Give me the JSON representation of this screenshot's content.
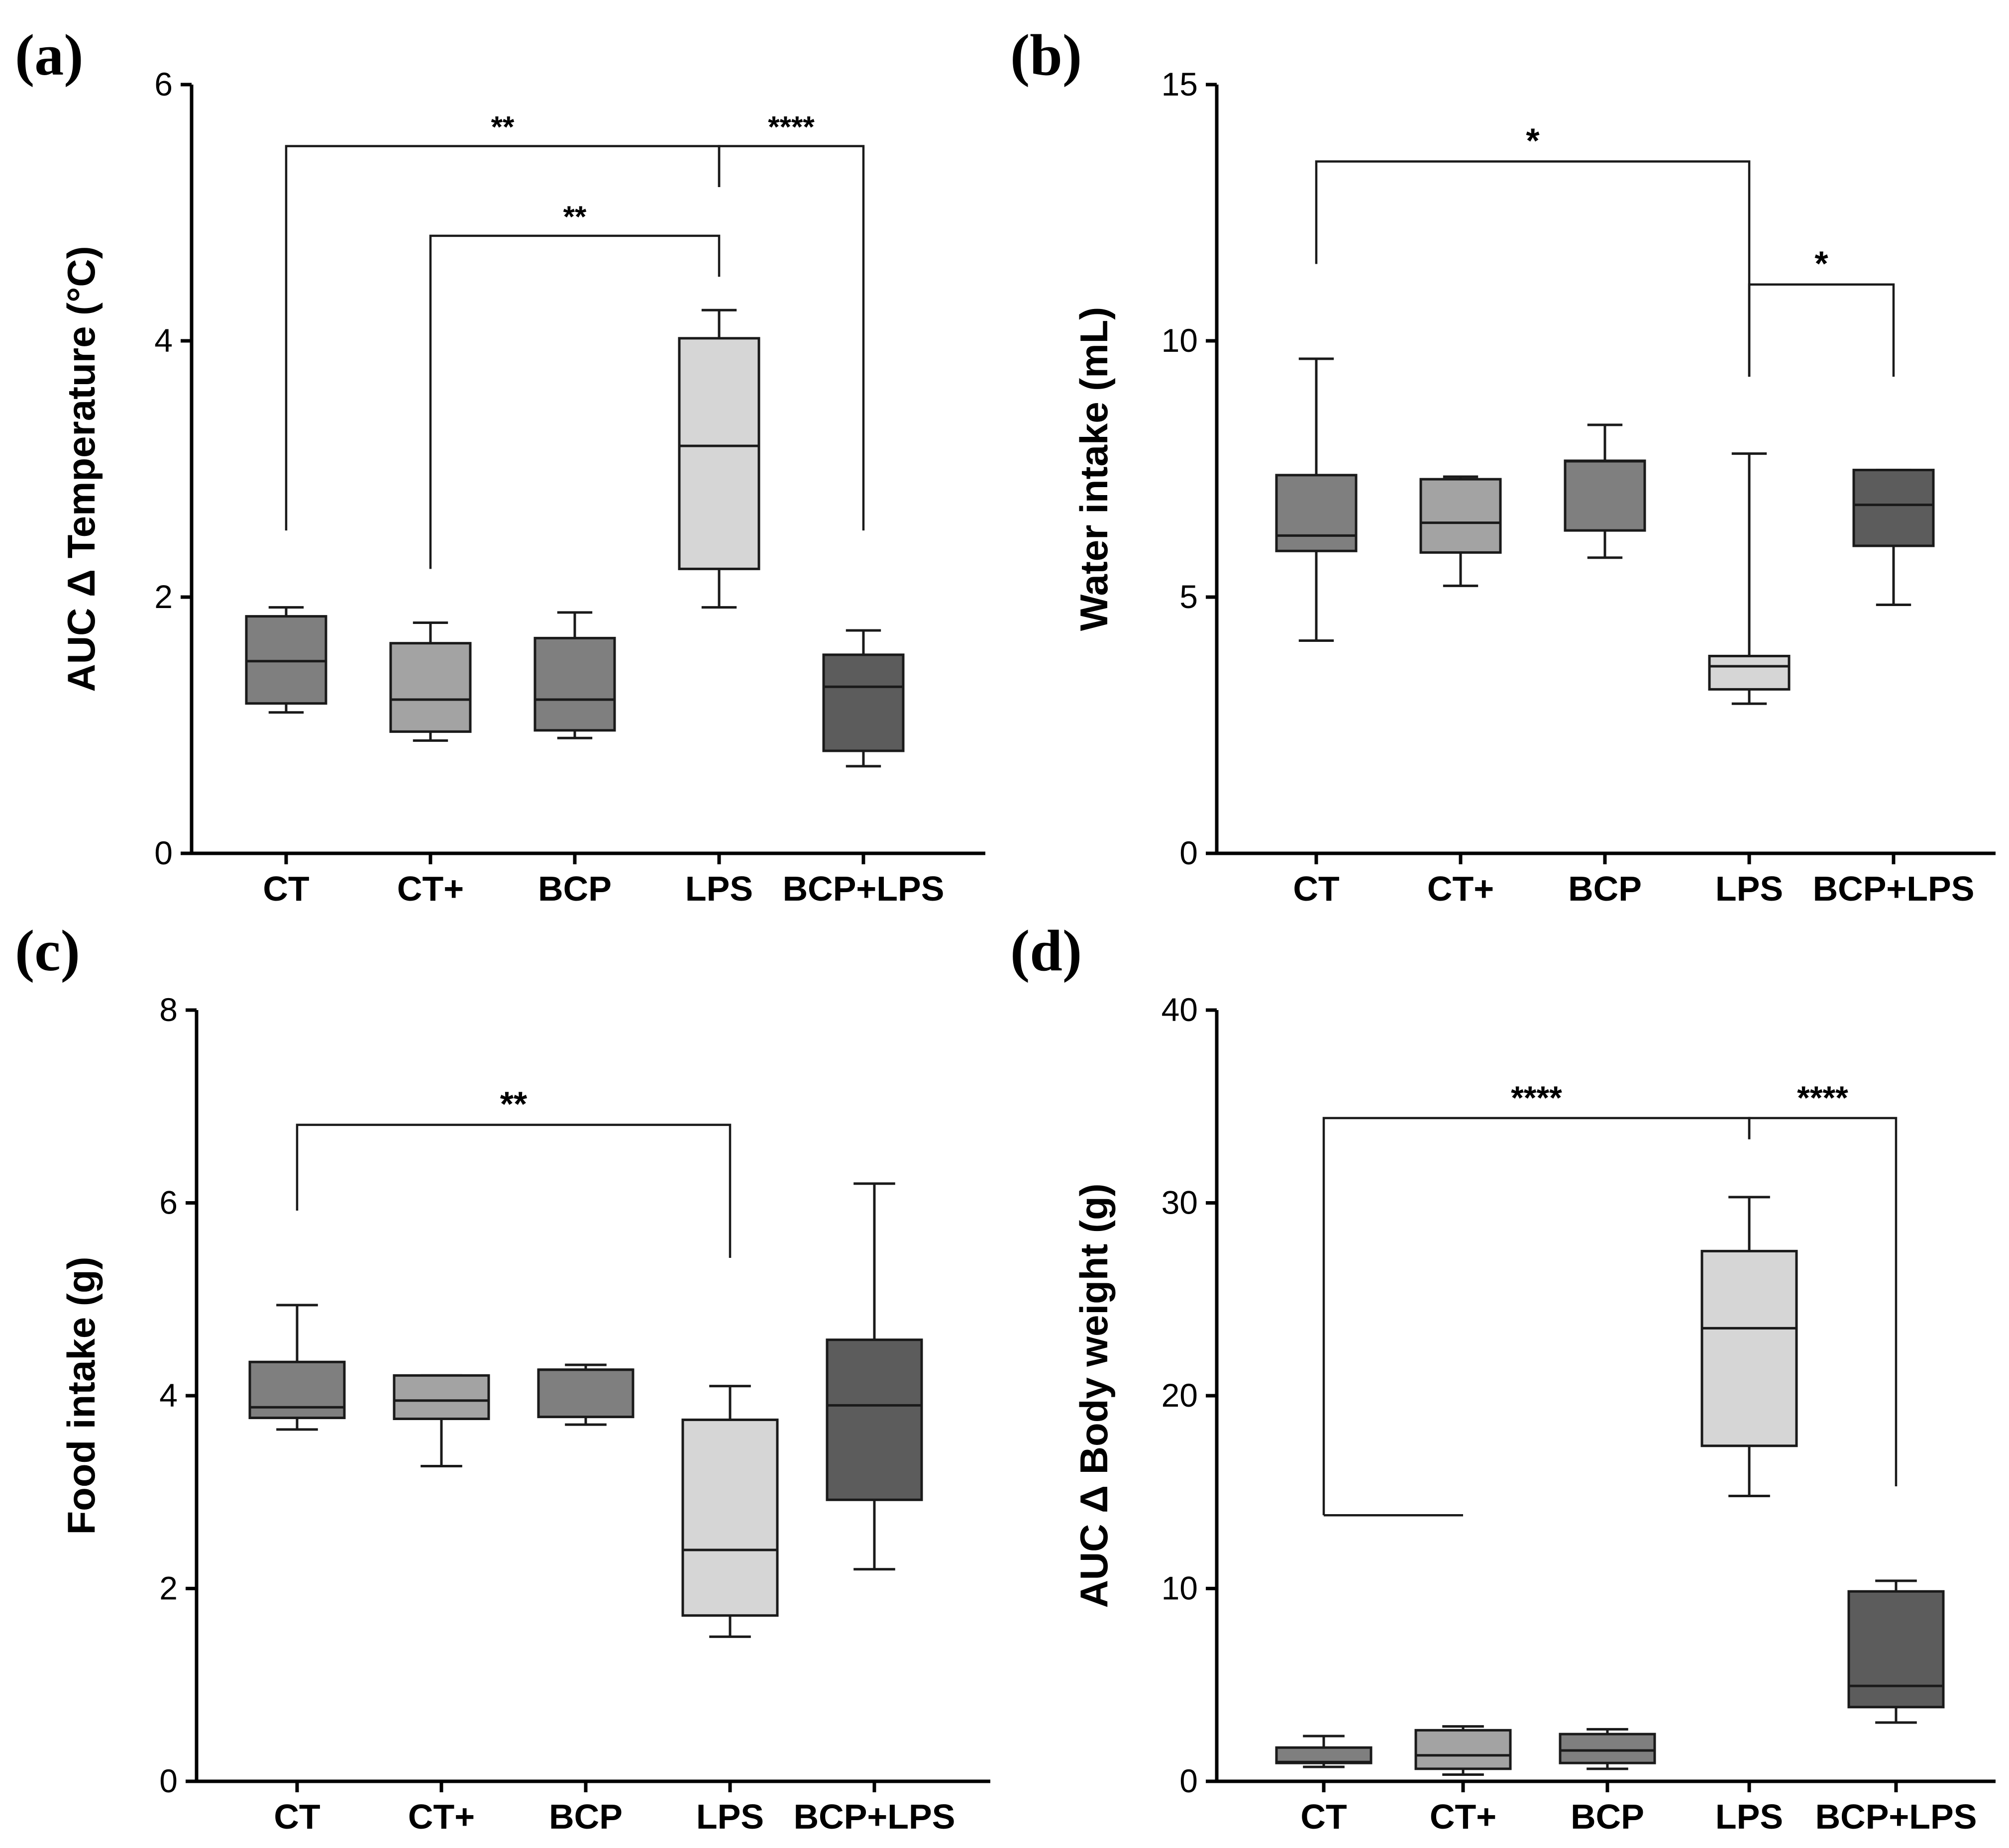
{
  "colors": {
    "CT": "#7f7f7f",
    "CT+": "#a3a3a3",
    "BCP": "#7f7f7f",
    "LPS": "#d6d6d6",
    "BCP+LPS": "#5c5c5c"
  },
  "chart_data": [
    {
      "panel": "(a)",
      "type": "box",
      "ylabel": "AUC Δ Temperature (°C)",
      "ylim": [
        0,
        6
      ],
      "yticks": [
        0,
        2,
        4,
        6
      ],
      "categories": [
        "CT",
        "CT+",
        "BCP",
        "LPS",
        "BCP+LPS"
      ],
      "boxes": [
        {
          "group": "CT",
          "min": 1.1,
          "q1": 1.17,
          "median": 1.5,
          "q3": 1.85,
          "max": 1.92
        },
        {
          "group": "CT+",
          "min": 0.88,
          "q1": 0.95,
          "median": 1.2,
          "q3": 1.64,
          "max": 1.8
        },
        {
          "group": "BCP",
          "min": 0.9,
          "q1": 0.96,
          "median": 1.2,
          "q3": 1.68,
          "max": 1.88
        },
        {
          "group": "LPS",
          "min": 1.92,
          "q1": 2.22,
          "median": 3.18,
          "q3": 4.02,
          "max": 4.24
        },
        {
          "group": "BCP+LPS",
          "min": 0.68,
          "q1": 0.8,
          "median": 1.3,
          "q3": 1.55,
          "max": 1.74
        }
      ],
      "comparisons": [
        {
          "from": "CT",
          "to": "LPS",
          "label": "**",
          "y": 5.52,
          "from_drop": 2.52,
          "to_drop": 5.2
        },
        {
          "from": "LPS",
          "to": "BCP+LPS",
          "label": "****",
          "y": 5.52,
          "from_drop": 5.2,
          "to_drop": 2.52
        },
        {
          "from": "CT+",
          "to": "LPS",
          "label": "**",
          "y": 4.82,
          "from_drop": 2.22,
          "to_drop": 4.5
        }
      ]
    },
    {
      "panel": "(b)",
      "type": "box",
      "ylabel": "Water intake (mL)",
      "ylim": [
        0,
        15
      ],
      "yticks": [
        0,
        5,
        10,
        15
      ],
      "categories": [
        "CT",
        "CT+",
        "BCP",
        "LPS",
        "BCP+LPS"
      ],
      "boxes": [
        {
          "group": "CT",
          "min": 4.15,
          "q1": 5.9,
          "median": 6.2,
          "q3": 7.38,
          "max": 9.65
        },
        {
          "group": "CT+",
          "min": 5.22,
          "q1": 5.87,
          "median": 6.45,
          "q3": 7.3,
          "max": 7.35
        },
        {
          "group": "BCP",
          "min": 5.77,
          "q1": 6.3,
          "median": 7.65,
          "q3": 7.66,
          "max": 8.36
        },
        {
          "group": "LPS",
          "min": 2.92,
          "q1": 3.2,
          "median": 3.65,
          "q3": 3.85,
          "max": 7.8
        },
        {
          "group": "BCP+LPS",
          "min": 4.85,
          "q1": 6.0,
          "median": 6.8,
          "q3": 7.48,
          "max": 7.48
        }
      ],
      "comparisons": [
        {
          "from": "CT",
          "to": "LPS",
          "label": "*",
          "y": 13.5,
          "from_drop": 11.5,
          "to_drop": 9.3
        },
        {
          "from": "LPS",
          "to": "BCP+LPS",
          "label": "*",
          "y": 11.1,
          "from_drop": 9.3,
          "to_drop": 9.3
        }
      ]
    },
    {
      "panel": "(c)",
      "type": "box",
      "ylabel": "Food intake (g)",
      "ylim": [
        0,
        8
      ],
      "yticks": [
        0,
        2,
        4,
        6,
        8
      ],
      "categories": [
        "CT",
        "CT+",
        "BCP",
        "LPS",
        "BCP+LPS"
      ],
      "boxes": [
        {
          "group": "CT",
          "min": 3.65,
          "q1": 3.77,
          "median": 3.88,
          "q3": 4.35,
          "max": 4.94
        },
        {
          "group": "CT+",
          "min": 3.27,
          "q1": 3.76,
          "median": 3.95,
          "q3": 4.21,
          "max": 4.21
        },
        {
          "group": "BCP",
          "min": 3.7,
          "q1": 3.78,
          "median": 4.27,
          "q3": 4.27,
          "max": 4.32
        },
        {
          "group": "LPS",
          "min": 1.5,
          "q1": 1.72,
          "median": 2.4,
          "q3": 3.75,
          "max": 4.1
        },
        {
          "group": "BCP+LPS",
          "min": 2.2,
          "q1": 2.92,
          "median": 3.9,
          "q3": 4.58,
          "max": 6.2
        }
      ],
      "comparisons": [
        {
          "from": "CT",
          "to": "LPS",
          "label": "**",
          "y": 6.81,
          "from_drop": 5.92,
          "to_drop": 5.43
        }
      ]
    },
    {
      "panel": "(d)",
      "type": "box",
      "ylabel": "AUC Δ Body weight (g)",
      "ylim": [
        0,
        40
      ],
      "yticks": [
        0,
        10,
        20,
        30,
        40
      ],
      "categories": [
        "CT",
        "CT+",
        "BCP",
        "LPS",
        "BCP+LPS"
      ],
      "boxes": [
        {
          "group": "CT",
          "min": 0.75,
          "q1": 0.95,
          "median": 1.0,
          "q3": 1.75,
          "max": 2.35
        },
        {
          "group": "CT+",
          "min": 0.35,
          "q1": 0.65,
          "median": 1.35,
          "q3": 2.65,
          "max": 2.85
        },
        {
          "group": "BCP",
          "min": 0.65,
          "q1": 0.95,
          "median": 1.6,
          "q3": 2.45,
          "max": 2.7
        },
        {
          "group": "LPS",
          "min": 14.8,
          "q1": 17.4,
          "median": 23.5,
          "q3": 27.5,
          "max": 30.3
        },
        {
          "group": "BCP+LPS",
          "min": 3.05,
          "q1": 3.85,
          "median": 4.95,
          "q3": 9.85,
          "max": 10.4
        }
      ],
      "comparisons": [
        {
          "from": "CT",
          "to": "LPS",
          "label": "****",
          "y": 34.4,
          "from_drop": 13.8,
          "to_drop": 33.3,
          "extra_base": {
            "from": "CT",
            "to": "CT+",
            "y": 13.8
          }
        },
        {
          "from": "LPS",
          "to": "BCP+LPS",
          "label": "****",
          "y": 34.4,
          "from_drop": 33.3,
          "to_drop": 15.3
        }
      ]
    }
  ]
}
